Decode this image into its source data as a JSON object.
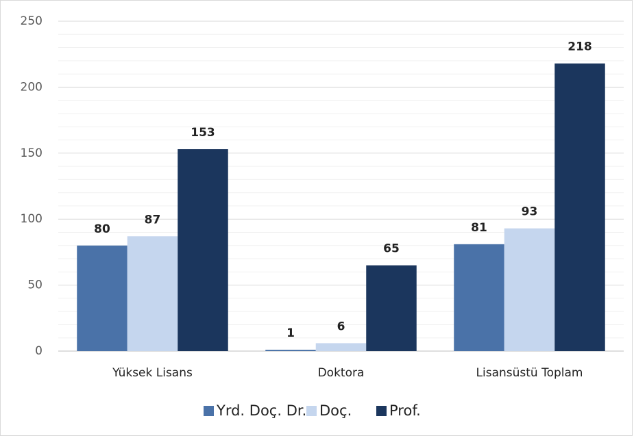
{
  "chart_data": {
    "type": "bar",
    "categories": [
      "Yüksek Lisans",
      "Doktora",
      "Lisansüstü Toplam"
    ],
    "series": [
      {
        "name": "Yrd. Doç. Dr.",
        "color": "#4a72a8",
        "values": [
          80,
          1,
          81
        ]
      },
      {
        "name": "Doç.",
        "color": "#c5d6ee",
        "values": [
          87,
          6,
          93
        ]
      },
      {
        "name": "Prof.",
        "color": "#1b365d",
        "values": [
          153,
          65,
          218
        ]
      }
    ],
    "ylim": [
      0,
      250
    ],
    "yticks": [
      0,
      50,
      100,
      150,
      200,
      250
    ],
    "minor_yticks": [
      10,
      20,
      30,
      40,
      60,
      70,
      80,
      90,
      110,
      120,
      130,
      140,
      160,
      170,
      180,
      190,
      210,
      220,
      230,
      240
    ],
    "grid": true,
    "legend": "bottom"
  }
}
